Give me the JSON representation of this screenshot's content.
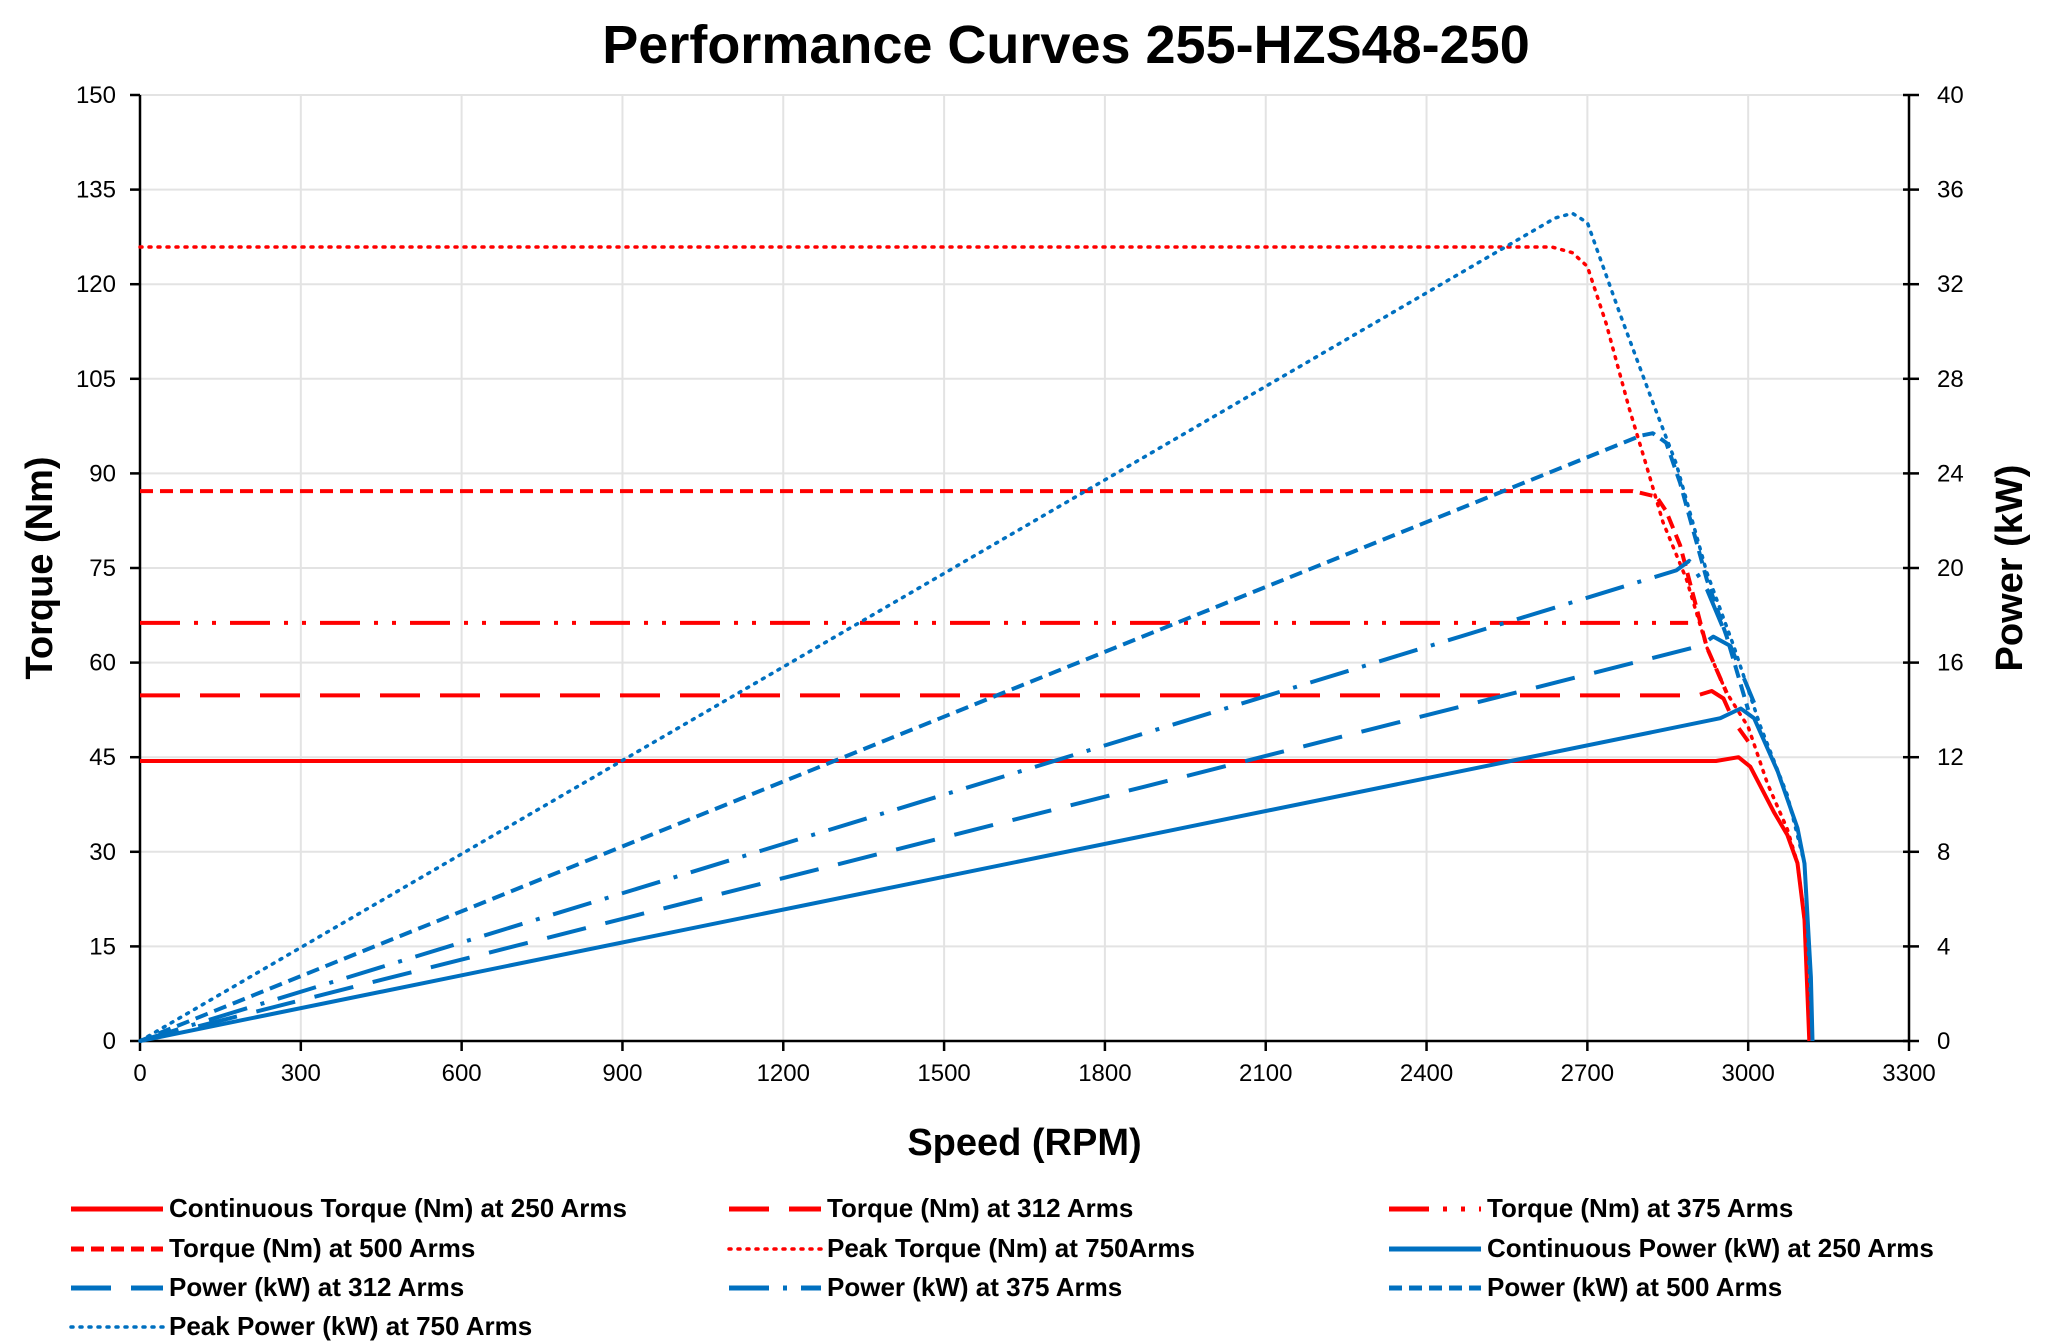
{
  "chart_data": {
    "type": "line",
    "title": "Performance Curves 255-HZS48-250",
    "xlabel": "Speed (RPM)",
    "ylabel": "Torque (Nm)",
    "y2label": "Power (kW)",
    "xlim": [
      0,
      3300
    ],
    "ylim": [
      0,
      150
    ],
    "y2lim": [
      0,
      40
    ],
    "xticks": [
      "0",
      "300",
      "600",
      "900",
      "1200",
      "1500",
      "1800",
      "2100",
      "2400",
      "2700",
      "3000",
      "3300"
    ],
    "yticks": [
      "0",
      "15",
      "30",
      "45",
      "60",
      "75",
      "90",
      "105",
      "120",
      "135",
      "150"
    ],
    "y2ticks": [
      "0",
      "4",
      "8",
      "12",
      "16",
      "20",
      "24",
      "28",
      "32",
      "36",
      "40"
    ],
    "grid": true,
    "legend_position": "bottom",
    "colors": {
      "torque": "#FF0000",
      "power": "#0070C0"
    },
    "series": [
      {
        "name": "Continuous Torque (Nm) at 250 Arms",
        "axis": "left",
        "color": "#FF0000",
        "style": "solid",
        "points": [
          [
            0,
            44.4
          ],
          [
            2940,
            44.4
          ],
          [
            2982,
            45.0
          ],
          [
            3004,
            43.5
          ],
          [
            3048,
            36.3
          ],
          [
            3073,
            32.7
          ],
          [
            3092,
            28.2
          ],
          [
            3105,
            19.2
          ],
          [
            3114,
            0
          ]
        ]
      },
      {
        "name": "Torque (Nm) at 312 Arms",
        "axis": "left",
        "color": "#FF0000",
        "style": "longdash",
        "points": [
          [
            0,
            54.8
          ],
          [
            2905,
            54.8
          ],
          [
            2932,
            55.5
          ],
          [
            2954,
            54.3
          ],
          [
            2973,
            50.7
          ],
          [
            3000,
            47.5
          ]
        ]
      },
      {
        "name": "Torque (Nm) at 375 Arms",
        "axis": "left",
        "color": "#FF0000",
        "style": "dashdotdot",
        "points": [
          [
            0,
            66.3
          ],
          [
            2888,
            66.3
          ]
        ]
      },
      {
        "name": "Torque (Nm) at 500 Arms",
        "axis": "left",
        "color": "#FF0000",
        "style": "dash",
        "points": [
          [
            0,
            87.2
          ],
          [
            2785,
            87.2
          ],
          [
            2829,
            86.3
          ],
          [
            2847,
            84.0
          ],
          [
            2873,
            78.6
          ],
          [
            2923,
            62.4
          ],
          [
            2960,
            55.2
          ]
        ]
      },
      {
        "name": "Peak Torque (Nm) at 750Arms",
        "axis": "left",
        "color": "#FF0000",
        "style": "dot",
        "points": [
          [
            0,
            125.9
          ],
          [
            2634,
            125.9
          ],
          [
            2672,
            125.0
          ],
          [
            2700,
            122.8
          ],
          [
            2735,
            113.8
          ],
          [
            2778,
            100.3
          ],
          [
            2810,
            91.3
          ],
          [
            2841,
            82.3
          ],
          [
            2885,
            73.2
          ],
          [
            2923,
            62.4
          ],
          [
            2960,
            55.2
          ],
          [
            3000,
            49.8
          ],
          [
            3036,
            40.8
          ],
          [
            3073,
            33.6
          ],
          [
            3092,
            28.2
          ],
          [
            3105,
            19.2
          ],
          [
            3111,
            10.2
          ],
          [
            3114,
            0
          ]
        ]
      },
      {
        "name": "Continuous Power (kW) at 250 Arms",
        "axis": "right",
        "color": "#0070C0",
        "style": "solid",
        "points": [
          [
            0,
            0
          ],
          [
            2948,
            13.65
          ],
          [
            2986,
            14.06
          ],
          [
            3011,
            13.65
          ],
          [
            3055,
            11.4
          ],
          [
            3092,
            9.0
          ],
          [
            3105,
            7.5
          ],
          [
            3117,
            2.7
          ],
          [
            3120,
            0
          ]
        ]
      },
      {
        "name": "Power (kW) at 312 Arms",
        "axis": "right",
        "color": "#0070C0",
        "style": "longdash",
        "points": [
          [
            0,
            0
          ],
          [
            2910,
            16.7
          ],
          [
            2935,
            17.1
          ],
          [
            2967,
            16.7
          ],
          [
            3011,
            14.3
          ]
        ]
      },
      {
        "name": "Power (kW) at 375 Arms",
        "axis": "right",
        "color": "#0070C0",
        "style": "dashdot",
        "points": [
          [
            0,
            0
          ],
          [
            2866,
            19.9
          ],
          [
            2890,
            20.3
          ],
          [
            2923,
            19.1
          ],
          [
            2960,
            17.1
          ]
        ]
      },
      {
        "name": "Power (kW) at 500 Arms",
        "axis": "right",
        "color": "#0070C0",
        "style": "dash",
        "points": [
          [
            0,
            0
          ],
          [
            2800,
            25.6
          ],
          [
            2822,
            25.7
          ],
          [
            2847,
            25.3
          ],
          [
            2873,
            23.6
          ],
          [
            2923,
            19.5
          ],
          [
            2960,
            17.1
          ],
          [
            3000,
            14.0
          ]
        ]
      },
      {
        "name": "Peak Power (kW) at 750 Arms",
        "axis": "right",
        "color": "#0070C0",
        "style": "dot",
        "points": [
          [
            0,
            0
          ],
          [
            2640,
            34.8
          ],
          [
            2672,
            35.0
          ],
          [
            2700,
            34.6
          ],
          [
            2760,
            30.8
          ],
          [
            2822,
            27.0
          ],
          [
            2866,
            24.4
          ],
          [
            2923,
            19.8
          ],
          [
            2973,
            16.7
          ],
          [
            3023,
            13.3
          ],
          [
            3073,
            10.4
          ],
          [
            3105,
            7.5
          ],
          [
            3120,
            0
          ]
        ]
      }
    ]
  }
}
